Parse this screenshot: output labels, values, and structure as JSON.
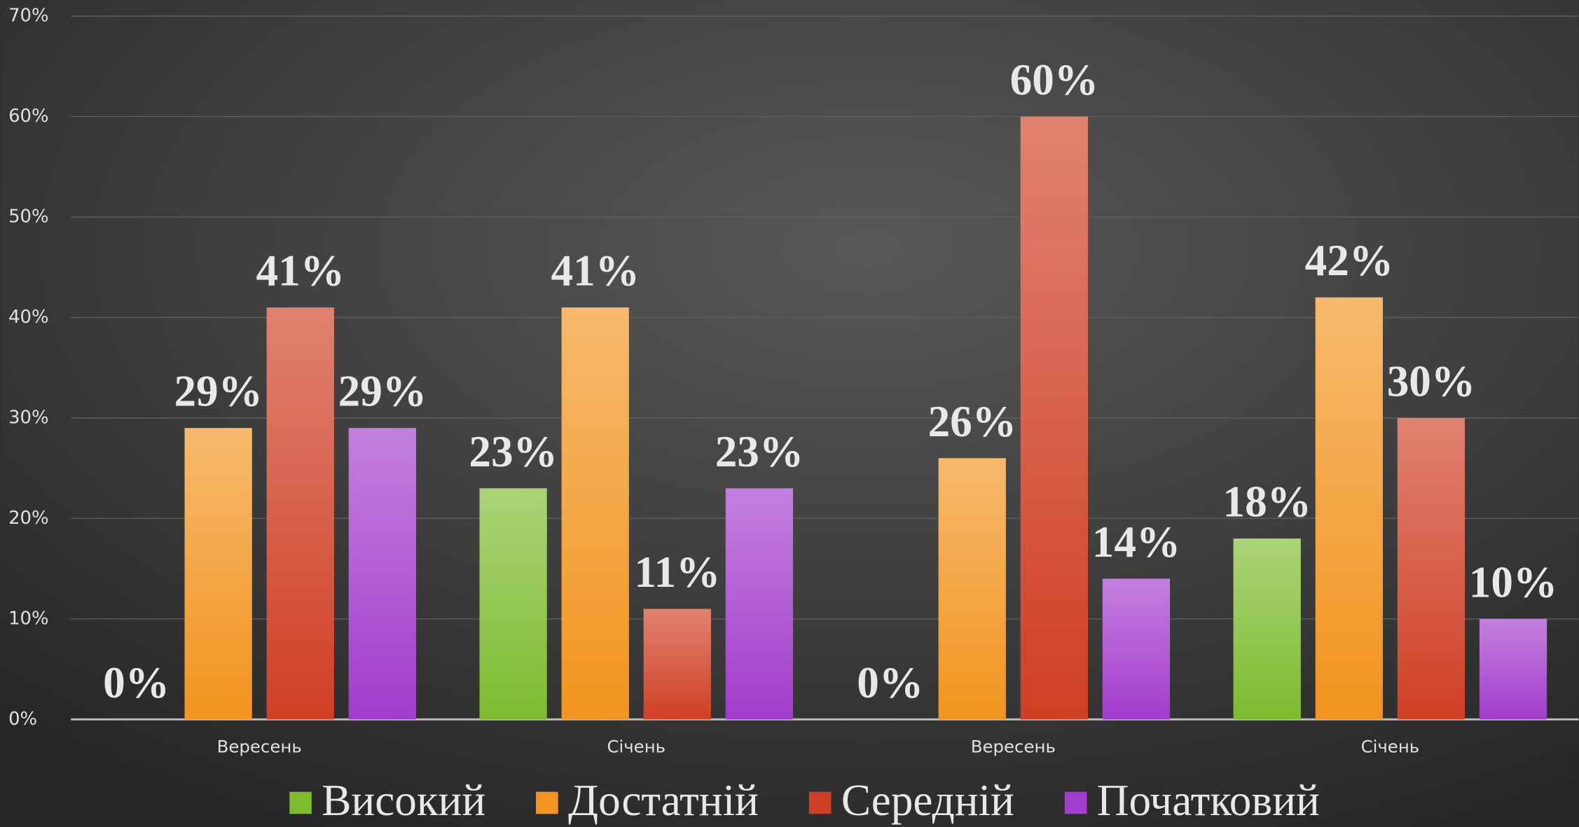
{
  "chart_data": {
    "type": "bar",
    "categories": [
      "Вересень",
      "Січень",
      "Вересень",
      "Січень"
    ],
    "series": [
      {
        "name": "Високий",
        "color": "#7dbb2f",
        "values": [
          0,
          23,
          0,
          18
        ],
        "value_labels": [
          "0%",
          "23%",
          "0%",
          "18%"
        ]
      },
      {
        "name": "Достатній",
        "color": "#f2941f",
        "values": [
          29,
          41,
          26,
          42
        ],
        "value_labels": [
          "29%",
          "41%",
          "26%",
          "42%"
        ]
      },
      {
        "name": "Середній",
        "color": "#cf3f25",
        "values": [
          41,
          11,
          60,
          30
        ],
        "value_labels": [
          "41%",
          "11%",
          "60%",
          "30%"
        ]
      },
      {
        "name": "Початковий",
        "color": "#a23ccc",
        "values": [
          29,
          23,
          14,
          10
        ],
        "value_labels": [
          "29%",
          "23%",
          "14%",
          "10%"
        ]
      }
    ],
    "ylim": [
      0,
      70
    ],
    "yticks": [
      {
        "value": 0,
        "label": "0%"
      },
      {
        "value": 10,
        "label": "10%"
      },
      {
        "value": 20,
        "label": "20%"
      },
      {
        "value": 30,
        "label": "30%"
      },
      {
        "value": 40,
        "label": "40%"
      },
      {
        "value": 50,
        "label": "50%"
      },
      {
        "value": 60,
        "label": "60%"
      },
      {
        "value": 70,
        "label": "70%"
      }
    ],
    "grid": true,
    "legend": "bottom"
  }
}
